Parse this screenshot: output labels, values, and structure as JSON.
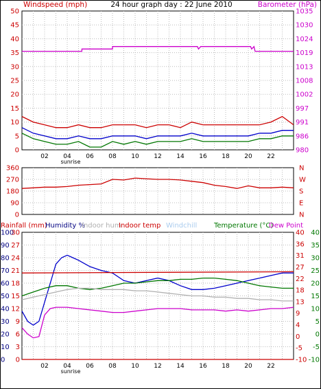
{
  "page": {
    "background": "#ffffff",
    "frame_color": "#000000"
  },
  "chart_data": [
    {
      "type": "line",
      "title": "24 hour graph day : 22 June 2010",
      "left_axis_label": "Windspeed (mph)",
      "right_axis_label": "Barometer (hPa)",
      "left_ylim": [
        0,
        50
      ],
      "left_ticks": [
        0,
        5,
        10,
        15,
        20,
        25,
        30,
        35,
        40,
        45,
        50
      ],
      "right_ticks": [
        "980",
        "986",
        "991",
        "997",
        "1002",
        "1008",
        "1013",
        "1019",
        "1024",
        "1030",
        "1035"
      ],
      "x_ticks": [
        "02",
        "04",
        "06",
        "08",
        "10",
        "12",
        "14",
        "16",
        "18",
        "20",
        "22"
      ],
      "x_marker": "sunrise",
      "x_marker_hour": 4.3,
      "grid": true,
      "colors": {
        "left_axis": "#cc0000",
        "right_axis": "#cc00cc"
      },
      "series": [
        {
          "name": "",
          "color": "#cc00cc",
          "x": [
            0,
            5.3,
            5.3,
            8,
            8,
            15.5,
            15.6,
            15.8,
            20.2,
            20.3,
            20.5,
            20.6,
            24
          ],
          "y": [
            35.5,
            35.5,
            36.3,
            36.3,
            37.2,
            37.2,
            36.3,
            37.2,
            37.2,
            36.3,
            37.2,
            35.5,
            35.5
          ]
        },
        {
          "name": "",
          "color": "#cc0000",
          "x": [
            0,
            1,
            2,
            3,
            4,
            5,
            6,
            7,
            8,
            9,
            10,
            11,
            12,
            13,
            14,
            15,
            16,
            17,
            18,
            19,
            20,
            21,
            22,
            23,
            24
          ],
          "y": [
            12,
            10,
            9,
            8,
            8,
            9,
            8,
            8,
            9,
            9,
            9,
            8,
            9,
            9,
            8,
            10,
            9,
            9,
            9,
            9,
            9,
            9,
            10,
            12,
            9
          ]
        },
        {
          "name": "",
          "color": "#0000cc",
          "x": [
            0,
            1,
            2,
            3,
            4,
            5,
            6,
            7,
            8,
            9,
            10,
            11,
            12,
            13,
            14,
            15,
            16,
            17,
            18,
            19,
            20,
            21,
            22,
            23,
            24
          ],
          "y": [
            8,
            6,
            5,
            4,
            4,
            5,
            4,
            4,
            5,
            5,
            5,
            4,
            5,
            5,
            5,
            6,
            5,
            5,
            5,
            5,
            5,
            6,
            6,
            7,
            7
          ]
        },
        {
          "name": "",
          "color": "#007700",
          "x": [
            0,
            1,
            2,
            3,
            4,
            5,
            6,
            7,
            8,
            9,
            10,
            11,
            12,
            13,
            14,
            15,
            16,
            17,
            18,
            19,
            20,
            21,
            22,
            23,
            24
          ],
          "y": [
            6,
            4,
            3,
            2,
            2,
            3,
            1,
            1,
            3,
            2,
            3,
            2,
            3,
            3,
            3,
            4,
            3,
            3,
            3,
            3,
            3,
            4,
            4,
            5,
            5
          ]
        }
      ]
    },
    {
      "type": "line",
      "left_axis_label": "",
      "left_ylim": [
        0,
        360
      ],
      "left_ticks": [
        0,
        90,
        180,
        270,
        360
      ],
      "right_ticks": [
        "N",
        "E",
        "S",
        "W",
        "N"
      ],
      "x_ticks": [],
      "grid": true,
      "colors": {
        "left_axis": "#cc0000",
        "right_axis": "#cc0000"
      },
      "series": [
        {
          "name": "",
          "color": "#cc0000",
          "x": [
            0,
            1,
            2,
            3,
            4,
            5,
            6,
            7,
            8,
            9,
            10,
            11,
            12,
            13,
            14,
            15,
            16,
            17,
            18,
            19,
            20,
            21,
            22,
            23,
            24
          ],
          "y": [
            200,
            205,
            210,
            210,
            215,
            225,
            230,
            235,
            270,
            265,
            280,
            275,
            270,
            270,
            265,
            255,
            245,
            225,
            215,
            200,
            220,
            205,
            205,
            210,
            205
          ]
        }
      ]
    },
    {
      "type": "line",
      "legend": [
        {
          "text": "Rainfall (mm)",
          "color": "#cc0000"
        },
        {
          "text": "Humidity %",
          "color": "#000080"
        },
        {
          "text": "Indoor hum",
          "color": "#b0b0b0"
        },
        {
          "text": "Indoor temp",
          "color": "#cc0000"
        },
        {
          "text": "Windchill",
          "color": "#aaccee"
        },
        {
          "text": "Temperature (°C)",
          "color": "#007700"
        },
        {
          "text": "Dew Point",
          "color": "#cc00cc"
        }
      ],
      "left_axis_label": "",
      "left_ylim": [
        0,
        100
      ],
      "left_ticks_outer": [
        "0",
        "10",
        "20",
        "30",
        "40",
        "50",
        "60",
        "70",
        "80",
        "90",
        "100"
      ],
      "left_ticks_inner": [
        "0",
        "3",
        "6",
        "9",
        "12",
        "15",
        "18",
        "21",
        "24",
        "27",
        "30"
      ],
      "right_ticks_inner": [
        "-10",
        "-5",
        "0",
        "4",
        "9",
        "13",
        "18",
        "22",
        "27",
        "31",
        "36",
        "40"
      ],
      "right_ticks_outer": [
        "-10",
        "-5",
        "0",
        "5",
        "10",
        "15",
        "20",
        "25",
        "30",
        "35",
        "40"
      ],
      "x_ticks": [
        "02",
        "04",
        "06",
        "08",
        "10",
        "12",
        "14",
        "16",
        "18",
        "20",
        "22"
      ],
      "x_marker": "sunrise",
      "x_marker_hour": 4.3,
      "grid": true,
      "colors": {
        "outer_left": "#000080",
        "inner_left": "#cc0000",
        "inner_right": "#cc0000",
        "outer_right": "#007700"
      },
      "series": [
        {
          "name": "Humidity %",
          "color": "#0000cc",
          "x": [
            0,
            0.5,
            1,
            1.5,
            2,
            2.5,
            3,
            3.5,
            4,
            4.5,
            5,
            6,
            7,
            8,
            9,
            10,
            11,
            12,
            13,
            14,
            15,
            16,
            17,
            18,
            19,
            20,
            21,
            22,
            23,
            24
          ],
          "y": [
            38,
            30,
            27,
            30,
            45,
            60,
            75,
            80,
            82,
            80,
            78,
            73,
            70,
            68,
            62,
            60,
            62,
            64,
            62,
            58,
            55,
            55,
            56,
            58,
            60,
            62,
            64,
            66,
            68,
            68
          ]
        },
        {
          "name": "Indoor temp",
          "color": "#cc0000",
          "x": [
            0,
            24
          ],
          "y": [
            68,
            69
          ]
        },
        {
          "name": "Temperature (°C)",
          "color": "#007700",
          "x": [
            0,
            1,
            2,
            3,
            4,
            5,
            6,
            7,
            8,
            9,
            10,
            11,
            12,
            13,
            14,
            15,
            16,
            17,
            18,
            19,
            20,
            21,
            22,
            23,
            24
          ],
          "y": [
            50,
            53,
            56,
            58,
            58,
            56,
            55,
            56,
            58,
            60,
            60,
            61,
            62,
            62,
            63,
            63,
            64,
            64,
            63,
            62,
            60,
            58,
            57,
            56,
            56
          ]
        },
        {
          "name": "Indoor hum",
          "color": "#b0b0b0",
          "x": [
            0,
            1,
            2,
            3,
            4,
            5,
            6,
            7,
            8,
            9,
            10,
            11,
            12,
            13,
            14,
            15,
            16,
            17,
            18,
            19,
            20,
            21,
            22,
            23,
            24
          ],
          "y": [
            47,
            49,
            51,
            53,
            55,
            56,
            56,
            55,
            55,
            55,
            54,
            54,
            53,
            52,
            51,
            50,
            50,
            49,
            49,
            48,
            48,
            47,
            47,
            46,
            46
          ]
        },
        {
          "name": "Dew Point",
          "color": "#cc00cc",
          "x": [
            0,
            0.5,
            1,
            1.5,
            2,
            2.5,
            3,
            4,
            5,
            6,
            7,
            8,
            9,
            10,
            11,
            12,
            13,
            14,
            15,
            16,
            17,
            18,
            19,
            20,
            21,
            22,
            23,
            24
          ],
          "y": [
            25,
            20,
            17,
            18,
            35,
            40,
            41,
            41,
            40,
            39,
            38,
            37,
            37,
            38,
            39,
            40,
            40,
            40,
            39,
            39,
            39,
            38,
            39,
            38,
            39,
            40,
            40,
            41
          ]
        },
        {
          "name": "Rainfall (mm)",
          "color": "#cc0000",
          "x": [
            0,
            24
          ],
          "y": [
            0,
            0
          ]
        }
      ]
    }
  ]
}
